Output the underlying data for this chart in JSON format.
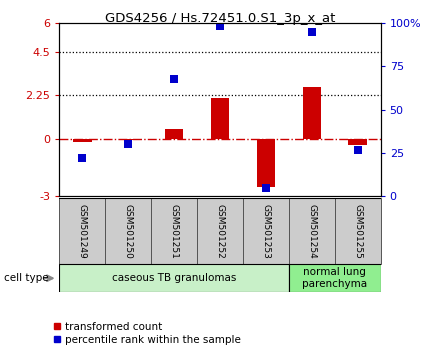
{
  "title": "GDS4256 / Hs.72451.0.S1_3p_x_at",
  "samples": [
    "GSM501249",
    "GSM501250",
    "GSM501251",
    "GSM501252",
    "GSM501253",
    "GSM501254",
    "GSM501255"
  ],
  "red_values": [
    -0.15,
    -0.06,
    0.52,
    2.1,
    -2.5,
    2.7,
    -0.32
  ],
  "blue_values": [
    22,
    30,
    68,
    98,
    5,
    95,
    27
  ],
  "left_ylim": [
    -3,
    6
  ],
  "right_ylim": [
    0,
    100
  ],
  "left_yticks": [
    -3,
    0,
    2.25,
    4.5,
    6
  ],
  "left_yticklabels": [
    "-3",
    "0",
    "2.25",
    "4.5",
    "6"
  ],
  "right_yticks": [
    0,
    25,
    50,
    75,
    100
  ],
  "right_yticklabels": [
    "0",
    "25",
    "50",
    "75",
    "100%"
  ],
  "dotted_lines": [
    2.25,
    4.5
  ],
  "cell_type_groups": [
    {
      "label": "caseous TB granulomas",
      "samples_span": [
        0,
        4
      ],
      "color": "#c8f0c8"
    },
    {
      "label": "normal lung\nparenchyma",
      "samples_span": [
        5,
        6
      ],
      "color": "#90ee90"
    }
  ],
  "cell_type_label": "cell type",
  "legend_red": "transformed count",
  "legend_blue": "percentile rank within the sample",
  "bar_color": "#cc0000",
  "dot_color": "#0000cc",
  "hline_color": "#cc0000",
  "background_color": "#ffffff",
  "plot_bg": "#ffffff",
  "bar_width": 0.4,
  "dot_size": 35,
  "sample_box_color": "#cccccc",
  "sample_box_edge": "#555555"
}
